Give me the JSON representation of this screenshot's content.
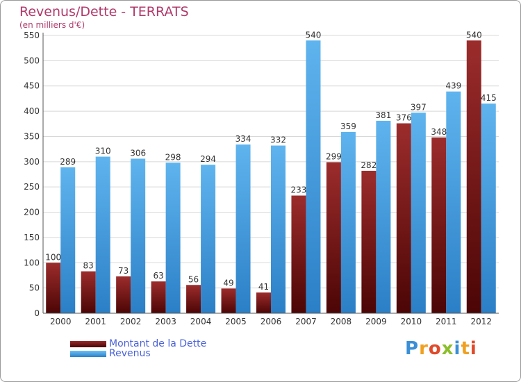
{
  "header": {
    "title": "Revenus/Dette - TERRATS",
    "subtitle": "(en milliers d'€)"
  },
  "chart_data": {
    "type": "bar",
    "categories": [
      "2000",
      "2001",
      "2002",
      "2003",
      "2004",
      "2005",
      "2006",
      "2007",
      "2008",
      "2009",
      "2010",
      "2011",
      "2012"
    ],
    "series": [
      {
        "name": "Montant de la Dette",
        "values": [
          100,
          83,
          73,
          63,
          56,
          49,
          41,
          233,
          299,
          282,
          376,
          348,
          540
        ],
        "color": "#7b1818"
      },
      {
        "name": "Revenus",
        "values": [
          289,
          310,
          306,
          298,
          294,
          334,
          332,
          540,
          359,
          381,
          397,
          439,
          415
        ],
        "color": "#4aa5e6"
      }
    ],
    "y_ticks": [
      0,
      50,
      100,
      150,
      200,
      250,
      300,
      350,
      400,
      450,
      500,
      550
    ],
    "ylim": [
      0,
      550
    ],
    "grid": true,
    "legend_placement": "bottom-left"
  },
  "logo": {
    "letters": [
      {
        "ch": "P",
        "color": "#3a8fd6"
      },
      {
        "ch": "r",
        "color": "#f0a020"
      },
      {
        "ch": "o",
        "color": "#e04a2a"
      },
      {
        "ch": "x",
        "color": "#8bbf2a"
      },
      {
        "ch": "i",
        "color": "#3a8fd6"
      },
      {
        "ch": "t",
        "color": "#f0a020"
      },
      {
        "ch": "i",
        "color": "#e04a2a"
      }
    ]
  }
}
